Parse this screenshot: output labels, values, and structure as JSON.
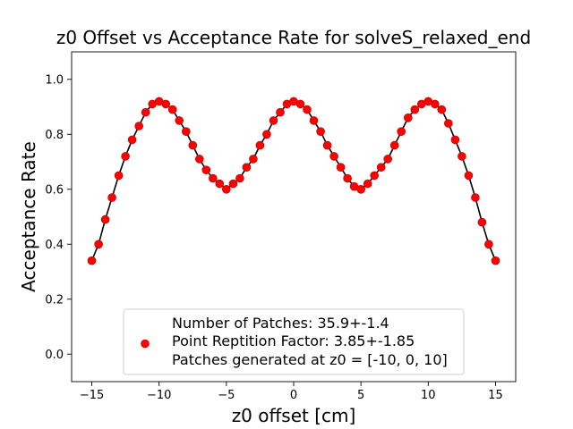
{
  "chart_data": {
    "type": "scatter",
    "title": "z0 Offset vs Acceptance Rate for solveS_relaxed_end",
    "xlabel": "z0 offset [cm]",
    "ylabel": "Acceptance Rate",
    "xlim": [
      -16.5,
      16.5
    ],
    "ylim": [
      -0.1,
      1.1
    ],
    "xticks": [
      -15,
      -10,
      -5,
      0,
      5,
      10,
      15
    ],
    "yticks": [
      0.0,
      0.2,
      0.4,
      0.6,
      0.8,
      1.0
    ],
    "xtick_labels": [
      "−15",
      "−10",
      "−5",
      "0",
      "5",
      "10",
      "15"
    ],
    "ytick_labels": [
      "0.0",
      "0.2",
      "0.4",
      "0.6",
      "0.8",
      "1.0"
    ],
    "grid": false,
    "legend_position": "lower center",
    "legend_lines": [
      "Number of Patches: 35.9+-1.4",
      "Point Reptition Factor: 3.85+-1.85",
      "Patches generated at z0 = [-10, 0, 10]"
    ],
    "marker_color": "#ff0000",
    "marker_edge_color": "#b00000",
    "line_color": "#000000",
    "series": [
      {
        "x": [
          -15.0,
          -14.5,
          -14.0,
          -13.5,
          -13.0,
          -12.5,
          -12.0,
          -11.5,
          -11.0,
          -10.5,
          -10.0,
          -9.5,
          -9.0,
          -8.5,
          -8.0,
          -7.5,
          -7.0,
          -6.5,
          -6.0,
          -5.5,
          -5.0,
          -4.5,
          -4.0,
          -3.5,
          -3.0,
          -2.5,
          -2.0,
          -1.5,
          -1.0,
          -0.5,
          0.0,
          0.5,
          1.0,
          1.5,
          2.0,
          2.5,
          3.0,
          3.5,
          4.0,
          4.5,
          5.0,
          5.5,
          6.0,
          6.5,
          7.0,
          7.5,
          8.0,
          8.5,
          9.0,
          9.5,
          10.0,
          10.5,
          11.0,
          11.5,
          12.0,
          12.5,
          13.0,
          13.5,
          14.0,
          14.5,
          15.0
        ],
        "y": [
          0.34,
          0.4,
          0.49,
          0.57,
          0.65,
          0.72,
          0.78,
          0.83,
          0.88,
          0.91,
          0.92,
          0.91,
          0.89,
          0.85,
          0.81,
          0.76,
          0.71,
          0.67,
          0.64,
          0.62,
          0.6,
          0.62,
          0.64,
          0.68,
          0.71,
          0.76,
          0.8,
          0.85,
          0.88,
          0.91,
          0.92,
          0.91,
          0.89,
          0.85,
          0.81,
          0.76,
          0.72,
          0.68,
          0.64,
          0.61,
          0.6,
          0.62,
          0.65,
          0.68,
          0.71,
          0.76,
          0.81,
          0.86,
          0.89,
          0.91,
          0.92,
          0.91,
          0.89,
          0.84,
          0.78,
          0.72,
          0.65,
          0.57,
          0.48,
          0.4,
          0.34
        ]
      }
    ]
  }
}
